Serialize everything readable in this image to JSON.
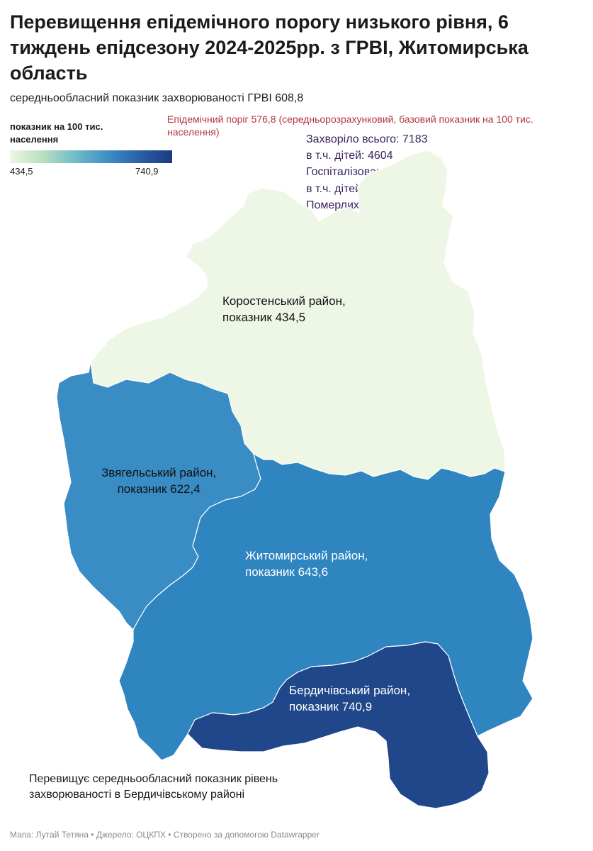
{
  "title": "Перевищення епідемічного порогу низького рівня, 6 тиждень епідсезону 2024-2025рр. з ГРВІ, Житомирська область",
  "subtitle": "середньообласний показник захворюваності ГРВІ  608,8",
  "legend": {
    "title": "показник на 100 тис. населення",
    "min": "434,5",
    "max": "740,9",
    "color_low": "#eef6e6",
    "color_high": "#1c3b80"
  },
  "threshold_note": "Епідемічний поріг 576,8 (середньорозрахунковий, базовий показник на 100 тис. населення)",
  "stats": [
    "Захворіло всього: 7183",
    "в т.ч. дітей: 4604",
    "Госпіталізовано: 178",
    "в т.ч. дітей 97",
    "Померлих: 0"
  ],
  "regions": {
    "korosten": {
      "line1": "Коростенський район,",
      "line2": "показник 434,5",
      "value": 434.5,
      "color": "#eef6e6"
    },
    "zviahel": {
      "line1": "Звягельський район,",
      "line2": "показник  622,4",
      "value": 622.4,
      "color": "#3a8cc5"
    },
    "zhytomyr": {
      "line1": "Житомирський район,",
      "line2": "показник 643,6",
      "value": 643.6,
      "color": "#2e85c0"
    },
    "berdychiv": {
      "line1": "Бердичівський район,",
      "line2": "показник 740,9",
      "value": 740.9,
      "color": "#1f4789"
    }
  },
  "note": "Перевищує середньообласний показник рівень захворюваності в  Бердичівському районі",
  "footer": "Мапа: Лутай Тетяна • Джерело: ОЦКПХ • Створено за допомогою Datawrapper"
}
